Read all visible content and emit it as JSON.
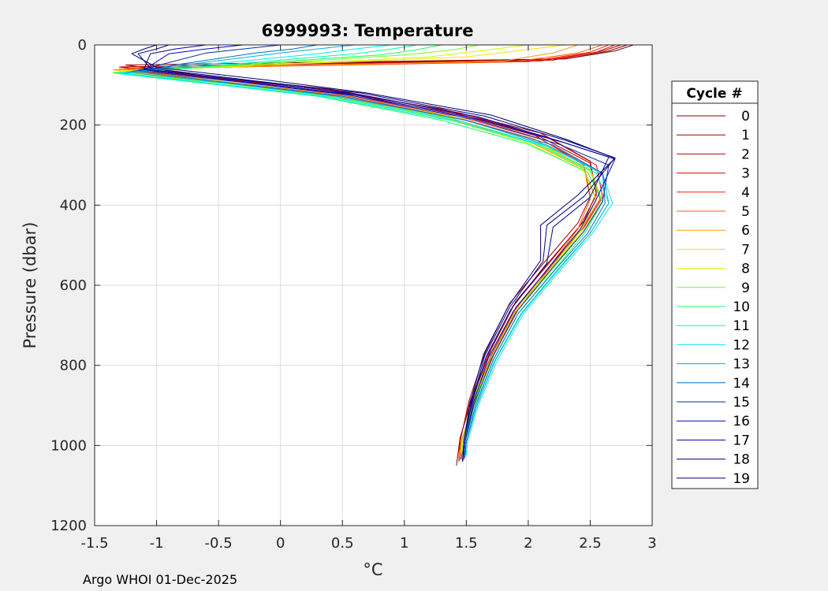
{
  "window": {
    "background": "#f0f0f0"
  },
  "footer": {
    "text": "Argo WHOI 01-Dec-2025"
  },
  "chart_data": {
    "type": "line",
    "title": "6999993:  Temperature",
    "xlabel": "°C",
    "ylabel": "Pressure (dbar)",
    "xlim": [
      -1.5,
      3
    ],
    "ylim": [
      0,
      1200
    ],
    "y_reversed": true,
    "grid": true,
    "xticks": [
      -1.5,
      -1,
      -0.5,
      0,
      0.5,
      1,
      1.5,
      2,
      2.5,
      3
    ],
    "xtick_labels": [
      "-1.5",
      "-1",
      "-0.5",
      "0",
      "0.5",
      "1",
      "1.5",
      "2",
      "2.5",
      "3"
    ],
    "yticks": [
      0,
      200,
      400,
      600,
      800,
      1000,
      1200
    ],
    "ytick_labels": [
      "0",
      "200",
      "400",
      "600",
      "800",
      "1000",
      "1200"
    ],
    "legend": {
      "title": "Cycle #",
      "placement": "outside-right"
    },
    "series": [
      {
        "name": "0",
        "color": "#800000",
        "x": [
          2.85,
          2.7,
          2.3,
          -1.3,
          -0.6,
          0.3,
          1.3,
          2.1,
          2.5,
          2.55,
          2.45,
          2.2,
          1.9,
          1.7,
          1.55,
          1.45,
          1.42
        ],
        "y": [
          0,
          15,
          35,
          55,
          80,
          110,
          160,
          220,
          290,
          370,
          440,
          530,
          640,
          760,
          880,
          980,
          1050
        ]
      },
      {
        "name": "1",
        "color": "#9a0000",
        "x": [
          2.8,
          2.65,
          2.3,
          -1.25,
          -0.55,
          0.4,
          1.35,
          2.05,
          2.45,
          2.5,
          2.4,
          2.15,
          1.85,
          1.65,
          1.52,
          1.45,
          1.44
        ],
        "y": [
          0,
          15,
          35,
          50,
          80,
          110,
          165,
          225,
          300,
          380,
          445,
          535,
          645,
          770,
          890,
          990,
          1040
        ]
      },
      {
        "name": "2",
        "color": "#c00000",
        "x": [
          2.75,
          2.6,
          2.2,
          -1.3,
          -0.5,
          0.35,
          1.4,
          2.1,
          2.5,
          2.55,
          2.42,
          2.18,
          1.88,
          1.68,
          1.53,
          1.45,
          1.43
        ],
        "y": [
          0,
          15,
          38,
          55,
          85,
          115,
          170,
          230,
          295,
          375,
          450,
          540,
          650,
          770,
          890,
          985,
          1030
        ]
      },
      {
        "name": "3",
        "color": "#e00000",
        "x": [
          2.7,
          2.55,
          2.1,
          -1.2,
          -0.45,
          0.45,
          1.45,
          2.15,
          2.55,
          2.6,
          2.45,
          2.2,
          1.9,
          1.7,
          1.55,
          1.47,
          1.45
        ],
        "y": [
          0,
          18,
          40,
          58,
          85,
          115,
          170,
          230,
          300,
          380,
          455,
          545,
          655,
          775,
          895,
          990,
          1035
        ]
      },
      {
        "name": "4",
        "color": "#ff2000",
        "x": [
          2.65,
          2.5,
          2.0,
          -1.25,
          -0.5,
          0.4,
          1.4,
          2.1,
          2.5,
          2.58,
          2.44,
          2.2,
          1.92,
          1.72,
          1.56,
          1.48,
          1.46
        ],
        "y": [
          0,
          18,
          42,
          60,
          85,
          120,
          175,
          235,
          305,
          385,
          455,
          545,
          660,
          775,
          895,
          990,
          1035
        ]
      },
      {
        "name": "5",
        "color": "#ff6000",
        "x": [
          2.6,
          2.4,
          1.9,
          -1.3,
          -0.55,
          0.35,
          1.35,
          2.05,
          2.45,
          2.5,
          2.4,
          2.18,
          1.9,
          1.7,
          1.55,
          1.46,
          1.44
        ],
        "y": [
          0,
          20,
          42,
          60,
          88,
          120,
          175,
          235,
          305,
          385,
          460,
          550,
          660,
          780,
          900,
          990,
          1030
        ]
      },
      {
        "name": "6",
        "color": "#ff9a00",
        "x": [
          2.4,
          2.2,
          1.8,
          -1.35,
          -0.6,
          0.3,
          1.3,
          2.0,
          2.45,
          2.55,
          2.42,
          2.2,
          1.9,
          1.7,
          1.55,
          1.47,
          1.45
        ],
        "y": [
          0,
          20,
          40,
          62,
          90,
          120,
          180,
          240,
          310,
          385,
          460,
          550,
          660,
          780,
          900,
          990,
          1025
        ]
      },
      {
        "name": "7",
        "color": "#ffe000",
        "x": [
          2.3,
          1.9,
          1.5,
          -1.3,
          -0.5,
          0.4,
          1.4,
          2.05,
          2.5,
          2.6,
          2.45,
          2.2,
          1.9,
          1.7,
          1.55,
          1.48,
          1.46
        ],
        "y": [
          0,
          15,
          30,
          65,
          90,
          125,
          180,
          240,
          310,
          390,
          460,
          555,
          665,
          780,
          900,
          990,
          1020
        ]
      },
      {
        "name": "8",
        "color": "#c8ff00",
        "x": [
          2.0,
          1.6,
          1.2,
          -1.35,
          -0.55,
          0.35,
          1.35,
          2.0,
          2.45,
          2.55,
          2.42,
          2.2,
          1.88,
          1.68,
          1.54,
          1.47,
          1.46
        ],
        "y": [
          0,
          15,
          30,
          68,
          92,
          125,
          185,
          245,
          315,
          390,
          465,
          555,
          665,
          780,
          900,
          990,
          1020
        ]
      },
      {
        "name": "9",
        "color": "#70ff20",
        "x": [
          1.6,
          1.4,
          1.0,
          -1.3,
          -0.5,
          0.4,
          1.4,
          2.05,
          2.5,
          2.6,
          2.45,
          2.2,
          1.9,
          1.7,
          1.55,
          1.48,
          1.47
        ],
        "y": [
          0,
          12,
          25,
          70,
          95,
          128,
          185,
          245,
          315,
          392,
          465,
          558,
          668,
          785,
          900,
          990,
          1020
        ]
      },
      {
        "name": "10",
        "color": "#20ff60",
        "x": [
          1.3,
          1.1,
          0.8,
          -1.35,
          -0.6,
          0.3,
          1.3,
          2.0,
          2.48,
          2.6,
          2.46,
          2.22,
          1.92,
          1.72,
          1.56,
          1.49,
          1.48
        ],
        "y": [
          0,
          12,
          25,
          70,
          95,
          128,
          188,
          248,
          318,
          392,
          468,
          558,
          670,
          785,
          905,
          992,
          1020
        ]
      },
      {
        "name": "11",
        "color": "#00ffb0",
        "x": [
          1.1,
          0.9,
          0.6,
          -1.3,
          -0.55,
          0.35,
          1.4,
          2.1,
          2.55,
          2.65,
          2.5,
          2.25,
          1.95,
          1.74,
          1.58,
          1.5,
          1.49
        ],
        "y": [
          0,
          10,
          22,
          72,
          98,
          130,
          190,
          250,
          320,
          395,
          470,
          560,
          670,
          785,
          905,
          992,
          1020
        ]
      },
      {
        "name": "12",
        "color": "#00e8ff",
        "x": [
          0.9,
          0.6,
          0.3,
          -1.3,
          -0.5,
          0.4,
          1.45,
          2.15,
          2.6,
          2.68,
          2.52,
          2.26,
          1.96,
          1.75,
          1.59,
          1.51,
          1.5
        ],
        "y": [
          0,
          10,
          22,
          70,
          98,
          130,
          190,
          252,
          322,
          395,
          470,
          562,
          672,
          788,
          905,
          992,
          1025
        ]
      },
      {
        "name": "13",
        "color": "#00b0e0",
        "x": [
          0.6,
          0.3,
          0.0,
          -1.25,
          -0.45,
          0.45,
          1.5,
          2.15,
          2.6,
          2.65,
          2.5,
          2.24,
          1.94,
          1.73,
          1.58,
          1.5,
          1.49
        ],
        "y": [
          0,
          10,
          20,
          68,
          95,
          128,
          188,
          250,
          320,
          395,
          470,
          560,
          672,
          788,
          905,
          992,
          1025
        ]
      },
      {
        "name": "14",
        "color": "#0070c0",
        "x": [
          0.3,
          0.1,
          -0.2,
          -1.2,
          -0.4,
          0.5,
          1.5,
          2.2,
          2.6,
          2.62,
          2.48,
          2.22,
          1.92,
          1.72,
          1.57,
          1.5,
          1.49
        ],
        "y": [
          0,
          10,
          20,
          66,
          95,
          128,
          188,
          250,
          320,
          395,
          470,
          560,
          670,
          785,
          905,
          992,
          1030
        ]
      },
      {
        "name": "15",
        "color": "#0030a0",
        "x": [
          0.0,
          -0.3,
          -0.6,
          -1.15,
          -0.35,
          0.55,
          1.55,
          2.25,
          2.65,
          2.6,
          2.45,
          2.2,
          1.9,
          1.7,
          1.56,
          1.49,
          1.48
        ],
        "y": [
          0,
          10,
          20,
          64,
          92,
          125,
          185,
          248,
          300,
          390,
          465,
          555,
          668,
          785,
          900,
          990,
          1030
        ]
      },
      {
        "name": "16",
        "color": "#0000d0",
        "x": [
          -0.3,
          -0.6,
          -0.9,
          -1.1,
          -0.3,
          0.6,
          1.6,
          2.3,
          2.7,
          2.55,
          2.42,
          2.18,
          1.88,
          1.68,
          1.55,
          1.49,
          1.48
        ],
        "y": [
          0,
          10,
          22,
          62,
          92,
          125,
          185,
          245,
          285,
          385,
          460,
          550,
          665,
          780,
          900,
          990,
          1035
        ]
      },
      {
        "name": "17",
        "color": "#0000a0",
        "x": [
          -0.6,
          -0.85,
          -1.05,
          -1.1,
          -0.25,
          0.6,
          1.6,
          2.25,
          2.65,
          2.5,
          2.2,
          2.15,
          1.86,
          1.66,
          1.54,
          1.48,
          1.47
        ],
        "y": [
          0,
          10,
          22,
          60,
          90,
          122,
          180,
          240,
          280,
          380,
          455,
          545,
          660,
          778,
          900,
          990,
          1040
        ]
      },
      {
        "name": "18",
        "color": "#000080",
        "x": [
          -0.9,
          -1.0,
          -1.15,
          -1.05,
          -0.2,
          0.65,
          1.65,
          2.3,
          2.7,
          2.45,
          2.15,
          2.12,
          1.85,
          1.65,
          1.54,
          1.48,
          1.47
        ],
        "y": [
          0,
          10,
          22,
          58,
          90,
          120,
          178,
          238,
          282,
          378,
          450,
          540,
          655,
          775,
          895,
          990,
          1040
        ]
      },
      {
        "name": "19",
        "color": "#000070",
        "x": [
          -1.0,
          -1.1,
          -1.2,
          -1.0,
          -0.1,
          0.7,
          1.7,
          2.3,
          2.7,
          2.4,
          2.1,
          2.1,
          1.84,
          1.64,
          1.53,
          1.48,
          1.47
        ],
        "y": [
          0,
          10,
          22,
          56,
          88,
          120,
          175,
          235,
          283,
          375,
          450,
          538,
          652,
          772,
          895,
          990,
          1040
        ]
      }
    ]
  }
}
